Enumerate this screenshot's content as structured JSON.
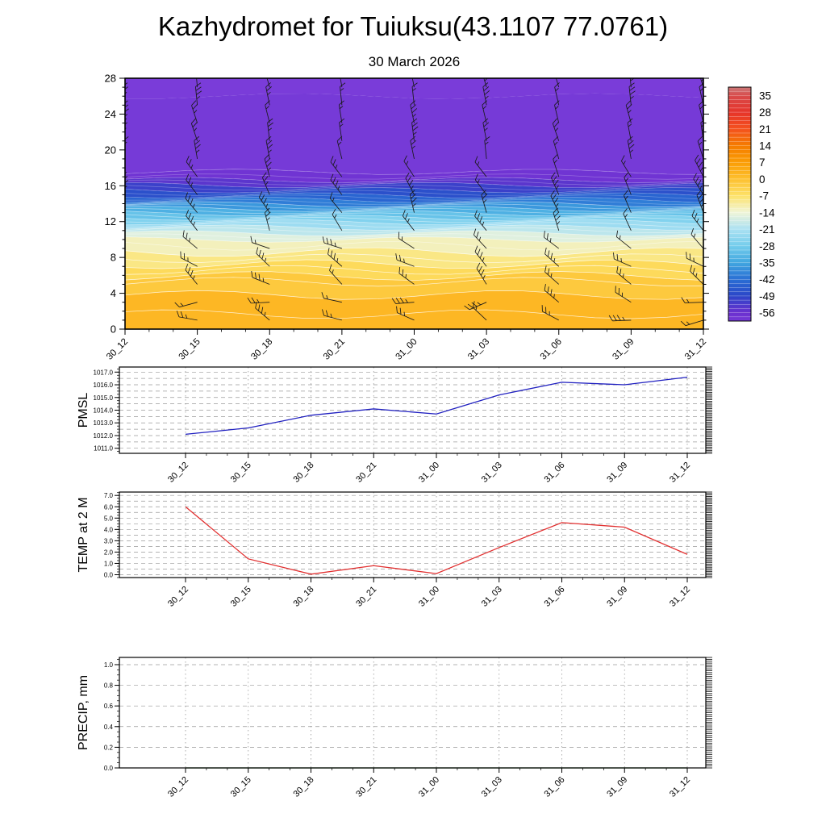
{
  "title": "Kazhydromet for Tuiuksu(43.1107 77.0761)",
  "subtitle": "30 March 2026",
  "time_labels": [
    "30_12",
    "30_15",
    "30_18",
    "30_21",
    "31_00",
    "31_03",
    "31_06",
    "31_09",
    "31_12"
  ],
  "colors": {
    "pmsl_line": "#2020c0",
    "temp_line": "#e23030",
    "precip_line": "#145a14",
    "grid": "#9a9a9a",
    "frame": "#000000",
    "barb": "#1a1a1a"
  },
  "chart_data": [
    {
      "type": "heatmap",
      "name": "temperature-height-cross-section",
      "x_labels": [
        "30_12",
        "30_15",
        "30_18",
        "30_21",
        "31_00",
        "31_03",
        "31_06",
        "31_09",
        "31_12"
      ],
      "ylim": [
        0,
        28
      ],
      "yticks": [
        0,
        4,
        8,
        12,
        16,
        20,
        24,
        28
      ],
      "contour_interval": 3.5,
      "contour_line_interval": 1.75,
      "wind_barb_columns": 9,
      "wind_barb_rows": 14,
      "profile": [
        [
          0,
          3
        ],
        [
          2,
          1.5
        ],
        [
          5,
          -1
        ],
        [
          8,
          -9
        ],
        [
          10,
          -14
        ],
        [
          11,
          -19
        ],
        [
          12,
          -25
        ],
        [
          13,
          -32
        ],
        [
          14,
          -39
        ],
        [
          15,
          -46
        ],
        [
          16,
          -52
        ],
        [
          16.8,
          -57
        ],
        [
          18,
          -61
        ],
        [
          28,
          -63.5
        ]
      ],
      "colorbar": {
        "ticks": [
          35,
          28,
          21,
          14,
          7,
          0,
          -7,
          -14,
          -21,
          -28,
          -35,
          -42,
          -49,
          -56
        ],
        "range": [
          38.5,
          -59.5
        ],
        "stops": [
          [
            38.5,
            "#cc7a7a"
          ],
          [
            35,
            "#d84b4b"
          ],
          [
            28,
            "#e6342a"
          ],
          [
            21,
            "#f4511e"
          ],
          [
            14,
            "#f57c00"
          ],
          [
            7,
            "#fb9d04"
          ],
          [
            0,
            "#fdc02f"
          ],
          [
            -7,
            "#fde269"
          ],
          [
            -14,
            "#f0f5d8"
          ],
          [
            -21,
            "#abe1f2"
          ],
          [
            -28,
            "#74cdec"
          ],
          [
            -35,
            "#41a6e0"
          ],
          [
            -42,
            "#2a6fd4"
          ],
          [
            -49,
            "#2b46c8"
          ],
          [
            -56,
            "#6b30cf"
          ],
          [
            -59.5,
            "#7438d6"
          ],
          [
            -64,
            "#7a3cd9"
          ]
        ]
      }
    },
    {
      "type": "line",
      "name": "pmsl",
      "ylabel": "PMSL",
      "ylim": [
        1010.6,
        1017.4
      ],
      "yticks": [
        1011,
        1012,
        1013,
        1014,
        1015,
        1016,
        1017
      ],
      "ytick_decimals": 1,
      "grid_step": 0.5,
      "minor_step": 0.25,
      "x": [
        "30_12",
        "30_15",
        "30_18",
        "30_21",
        "31_00",
        "31_03",
        "31_06",
        "31_09",
        "31_12"
      ],
      "values": [
        1012.1,
        1012.6,
        1013.6,
        1014.1,
        1013.7,
        1015.2,
        1016.2,
        1016.0,
        1016.6
      ],
      "color_key": "pmsl_line"
    },
    {
      "type": "line",
      "name": "temp-2m",
      "ylabel": "TEMP at 2 M",
      "ylim": [
        -0.25,
        7.3
      ],
      "yticks": [
        0,
        1,
        2,
        3,
        4,
        5,
        6,
        7
      ],
      "ytick_decimals": 1,
      "grid_step": 0.5,
      "minor_step": 0.25,
      "x": [
        "30_12",
        "30_15",
        "30_18",
        "30_21",
        "31_00",
        "31_03",
        "31_06",
        "31_09",
        "31_12"
      ],
      "values": [
        6.0,
        1.4,
        0.05,
        0.8,
        0.1,
        2.4,
        4.6,
        4.2,
        1.8
      ],
      "color_key": "temp_line"
    },
    {
      "type": "line",
      "name": "precip",
      "ylabel": "PRECIP, mm",
      "ylim": [
        0,
        1.07
      ],
      "yticks": [
        0,
        0.2,
        0.4,
        0.6,
        0.8,
        1.0
      ],
      "ytick_decimals": 1,
      "grid_step": 0.2,
      "minor_step": 0.05,
      "x": [
        "30_12",
        "30_15",
        "30_18",
        "30_21",
        "31_00",
        "31_03",
        "31_06",
        "31_09",
        "31_12"
      ],
      "values": [
        0,
        0,
        0,
        0,
        0,
        0,
        0,
        0,
        0
      ],
      "color_key": "precip_line"
    }
  ]
}
